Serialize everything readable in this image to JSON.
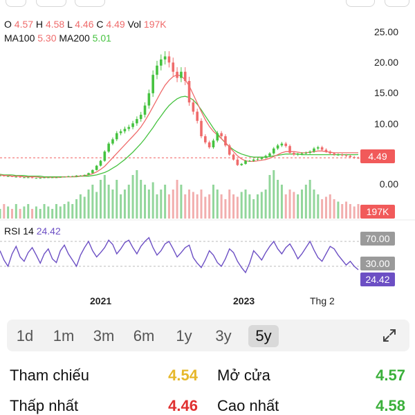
{
  "header": {
    "o_label": "O",
    "o_value": "4.57",
    "h_label": "H",
    "h_value": "4.58",
    "l_label": "L",
    "l_value": "4.46",
    "c_label": "C",
    "c_value": "4.49",
    "vol_label": "Vol",
    "vol_value": "197K",
    "ma100_label": "MA100",
    "ma100_value": "5.30",
    "ma200_label": "MA200",
    "ma200_value": "5.01"
  },
  "price_axis": [
    "25.00",
    "20.00",
    "15.00",
    "10.00",
    "0.00"
  ],
  "price_tag": "4.49",
  "volume_tag": "197K",
  "rsi": {
    "label": "RSI 14",
    "value": "24.42",
    "upper": "70.00",
    "lower": "30.00"
  },
  "x_axis": [
    "2021",
    "2023",
    "Thg 2"
  ],
  "timeframes": [
    "1d",
    "1m",
    "3m",
    "6m",
    "1y",
    "3y",
    "5y"
  ],
  "active_timeframe": "5y",
  "stats": {
    "ref_label": "Tham chiếu",
    "ref_value": "4.54",
    "open_label": "Mở cửa",
    "open_value": "4.57",
    "low_label": "Thấp nhất",
    "low_value": "4.46",
    "high_label": "Cao nhất",
    "high_value": "4.58"
  },
  "colors": {
    "up": "#45c23f",
    "down": "#ef6b6b",
    "ref": "#e6b82b",
    "rsi": "#6c4fc4"
  },
  "chart_data": {
    "type": "line",
    "price_ylim": [
      0,
      25
    ],
    "price_series": [
      1.6,
      1.5,
      1.5,
      1.4,
      1.4,
      1.3,
      1.3,
      1.3,
      1.2,
      1.2,
      1.2,
      1.3,
      1.3,
      1.3,
      1.3,
      1.4,
      1.4,
      1.5,
      1.5,
      1.6,
      1.6,
      1.7,
      2.0,
      2.5,
      3.2,
      4.0,
      5.5,
      6.8,
      7.5,
      8.5,
      8.8,
      9.2,
      9.5,
      10.1,
      10.8,
      11.5,
      13,
      15,
      18,
      19.5,
      20.5,
      21,
      20,
      18.5,
      17.5,
      18.5,
      17,
      13.5,
      12,
      10.5,
      8,
      7,
      6.2,
      7.3,
      8.5,
      8,
      6.5,
      5,
      4.2,
      3.3,
      3.5,
      4,
      4,
      4.2,
      4.3,
      4.5,
      4.8,
      5.2,
      6,
      6.5,
      6.8,
      6.4,
      5.3,
      5,
      5.1,
      5.2,
      5.3,
      5.5,
      6,
      6.2,
      5.8,
      5.5,
      5.2,
      5,
      5,
      4.9,
      4.8,
      4.6,
      4.5,
      4.49
    ],
    "ma100_series": [
      1.7,
      1.6,
      1.6,
      1.5,
      1.5,
      1.5,
      1.4,
      1.4,
      1.4,
      1.4,
      1.3,
      1.3,
      1.3,
      1.3,
      1.3,
      1.3,
      1.4,
      1.4,
      1.4,
      1.5,
      1.5,
      1.6,
      1.7,
      1.9,
      2.2,
      2.6,
      3.1,
      3.8,
      4.5,
      5.2,
      5.9,
      6.6,
      7.3,
      8.0,
      8.7,
      9.5,
      10.5,
      11.6,
      12.8,
      14,
      15.2,
      16.3,
      17.1,
      17.7,
      18,
      17.8,
      17.2,
      16.2,
      14.8,
      13.4,
      12,
      10.7,
      9.6,
      8.8,
      8.2,
      7.6,
      7,
      6.2,
      5.5,
      4.8,
      4.3,
      4,
      3.9,
      3.9,
      4,
      4.1,
      4.2,
      4.4,
      4.7,
      5,
      5.3,
      5.5,
      5.5,
      5.5,
      5.4,
      5.3,
      5.3,
      5.4,
      5.5,
      5.6,
      5.6,
      5.5,
      5.4,
      5.3,
      5.3,
      5.3,
      5.3,
      5.3,
      5.3,
      5.3
    ],
    "ma200_series": [
      1.8,
      1.7,
      1.7,
      1.7,
      1.6,
      1.6,
      1.6,
      1.5,
      1.5,
      1.5,
      1.5,
      1.4,
      1.4,
      1.4,
      1.4,
      1.4,
      1.4,
      1.4,
      1.4,
      1.4,
      1.5,
      1.5,
      1.5,
      1.6,
      1.7,
      1.9,
      2.1,
      2.4,
      2.8,
      3.2,
      3.7,
      4.2,
      4.8,
      5.4,
      6.1,
      6.8,
      7.6,
      8.5,
      9.4,
      10.4,
      11.3,
      12.2,
      13,
      13.6,
      14.1,
      14.4,
      14.5,
      14.3,
      13.9,
      13.2,
      12.3,
      11.3,
      10.3,
      9.3,
      8.4,
      7.6,
      6.9,
      6.3,
      5.8,
      5.4,
      5.1,
      4.9,
      4.7,
      4.6,
      4.6,
      4.6,
      4.6,
      4.7,
      4.8,
      4.9,
      5,
      5.1,
      5.1,
      5.1,
      5.1,
      5,
      5,
      5,
      5,
      5,
      5,
      5,
      5,
      5,
      5,
      5,
      5,
      5,
      5,
      5.01
    ],
    "ref_line": 4.49,
    "rsi_ylim": [
      0,
      100
    ],
    "rsi_series": [
      55,
      40,
      30,
      50,
      62,
      45,
      38,
      52,
      60,
      48,
      35,
      50,
      58,
      42,
      36,
      55,
      64,
      50,
      40,
      30,
      48,
      60,
      70,
      55,
      45,
      52,
      60,
      72,
      65,
      50,
      58,
      68,
      72,
      60,
      50,
      62,
      70,
      76,
      60,
      48,
      55,
      66,
      70,
      58,
      45,
      52,
      60,
      64,
      44,
      35,
      28,
      40,
      55,
      48,
      36,
      30,
      42,
      58,
      52,
      38,
      28,
      20,
      35,
      55,
      48,
      40,
      52,
      62,
      70,
      58,
      50,
      60,
      66,
      55,
      42,
      50,
      60,
      70,
      56,
      44,
      38,
      50,
      62,
      58,
      48,
      40,
      32,
      38,
      30,
      24.42
    ],
    "rsi_upper": 70,
    "rsi_lower": 30,
    "volume_series": [
      0.2,
      0.3,
      0.25,
      0.2,
      0.3,
      0.2,
      0.25,
      0.3,
      0.2,
      0.25,
      0.2,
      0.3,
      0.25,
      0.2,
      0.3,
      0.25,
      0.3,
      0.35,
      0.3,
      0.4,
      0.5,
      0.45,
      0.6,
      0.7,
      0.55,
      0.8,
      0.9,
      0.7,
      0.6,
      0.8,
      0.5,
      0.6,
      0.7,
      0.9,
      1.0,
      0.8,
      0.7,
      0.6,
      0.75,
      0.5,
      0.6,
      0.7,
      0.5,
      0.6,
      0.8,
      0.7,
      0.5,
      0.6,
      0.55,
      0.5,
      0.6,
      0.45,
      0.5,
      0.7,
      0.6,
      0.5,
      0.4,
      0.6,
      0.5,
      0.45,
      0.55,
      0.6,
      0.5,
      0.4,
      0.5,
      0.55,
      0.6,
      0.9,
      1.0,
      0.8,
      0.7,
      0.5,
      0.6,
      0.55,
      0.5,
      0.6,
      0.7,
      0.8,
      0.6,
      0.5,
      0.4,
      0.45,
      0.5,
      0.4,
      0.35,
      0.3,
      0.35,
      0.3,
      0.25,
      0.3
    ]
  }
}
